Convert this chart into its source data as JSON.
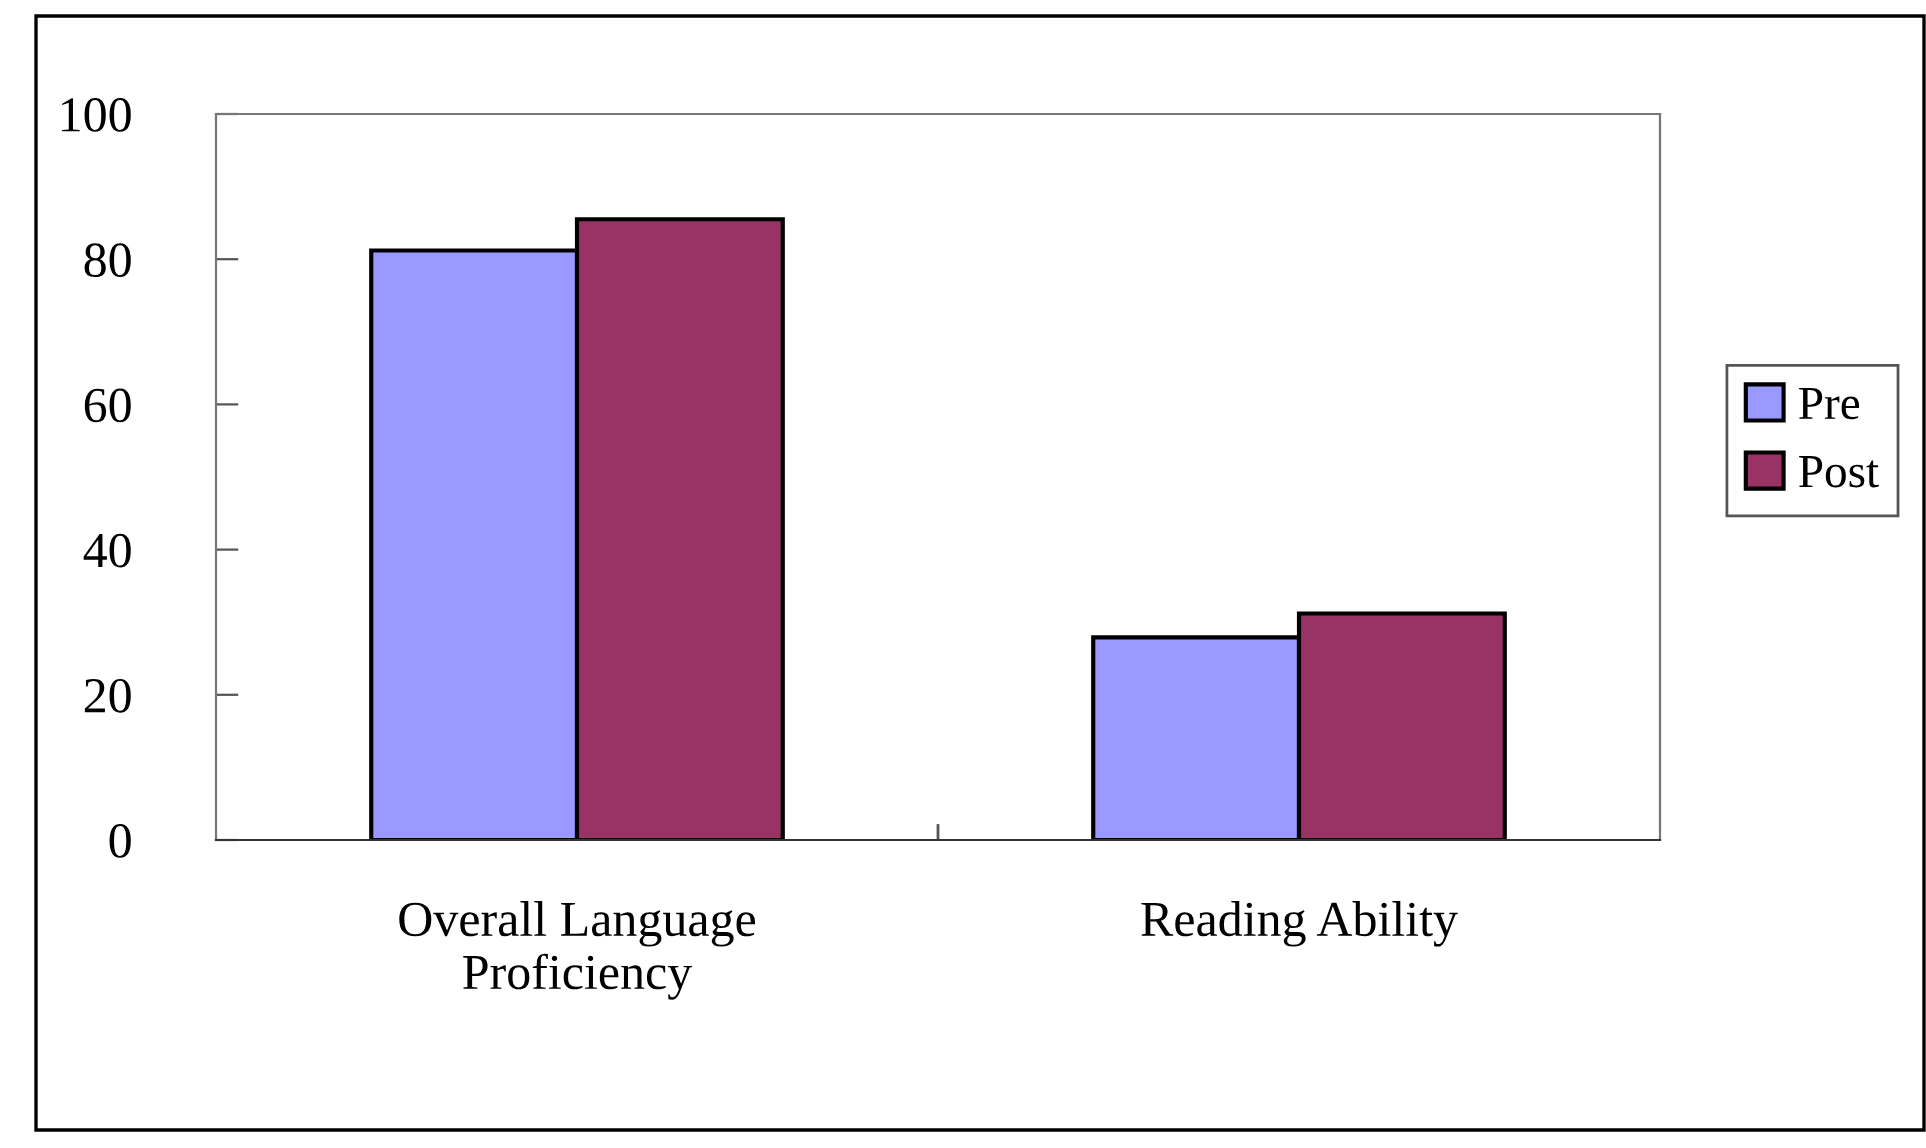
{
  "chart_data": {
    "type": "bar",
    "categories": [
      "Overall Language\nProficiency",
      "Reading Ability"
    ],
    "series": [
      {
        "name": "Pre",
        "color": "#9999ff",
        "values": [
          81.2,
          27.9
        ]
      },
      {
        "name": "Post",
        "color": "#993366",
        "values": [
          85.5,
          31.2
        ]
      }
    ],
    "ylim": [
      0,
      100
    ],
    "yticks": [
      0,
      20,
      40,
      60,
      80,
      100
    ],
    "grid": false,
    "legend": "right"
  }
}
